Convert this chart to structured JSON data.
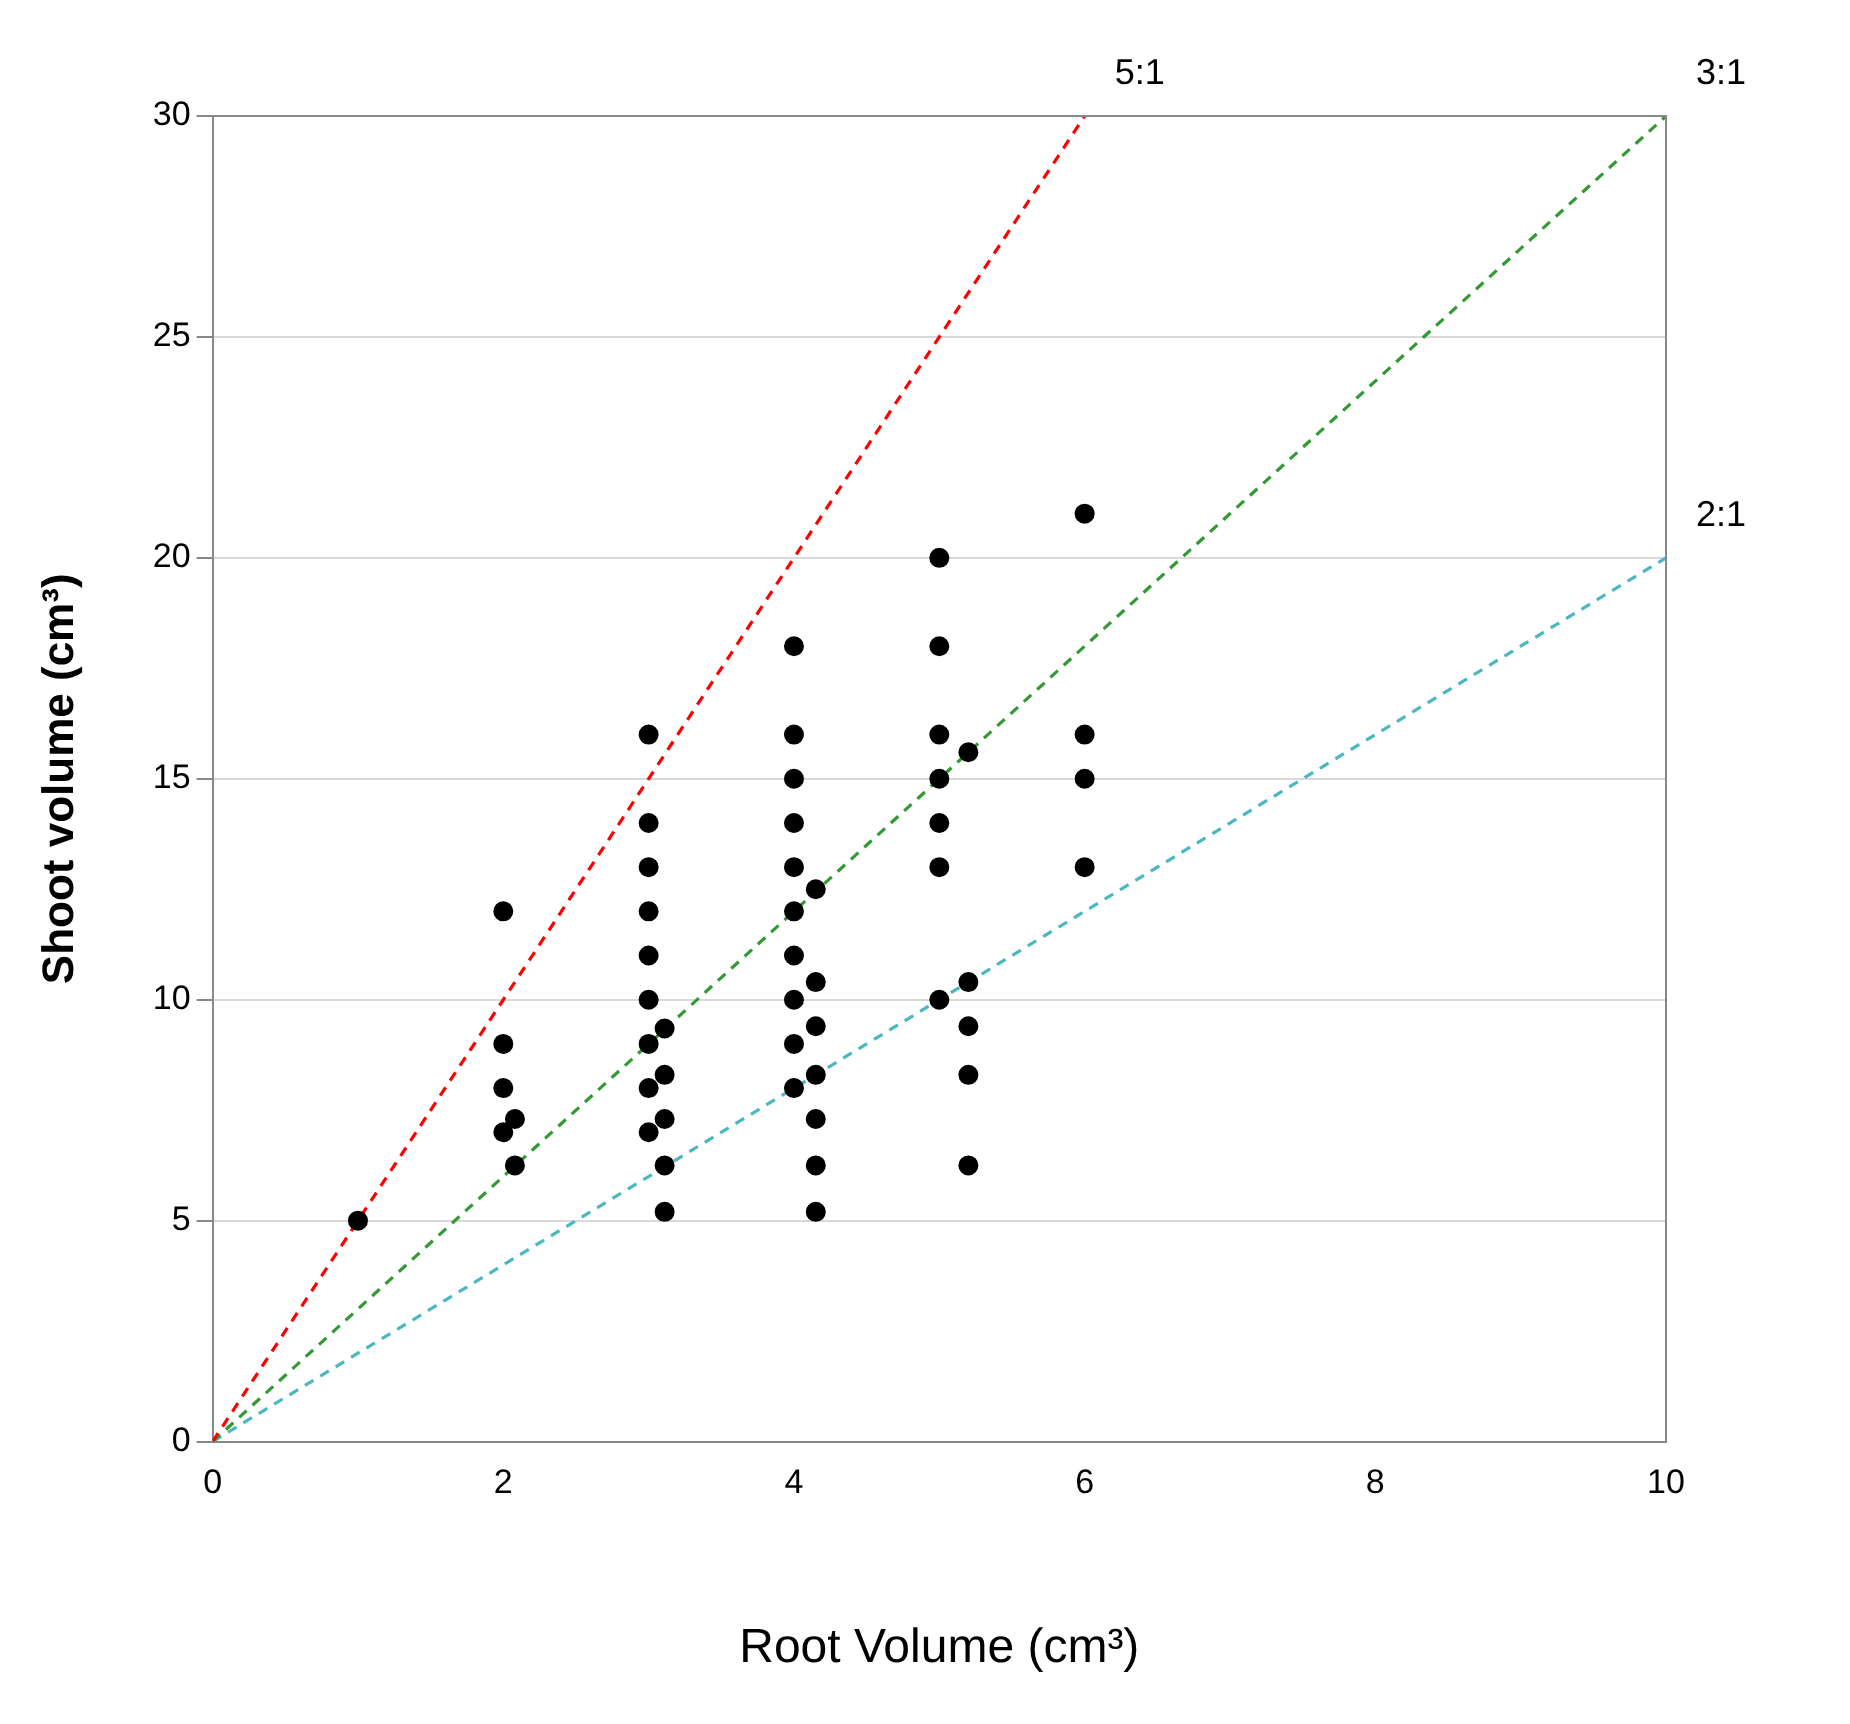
{
  "chart_data": {
    "type": "scatter",
    "xlabel": "Root Volume (cm³)",
    "ylabel": "Shoot volume (cm³)",
    "xlim": [
      0,
      10
    ],
    "xticks": [
      0,
      2,
      4,
      6,
      8,
      10
    ],
    "ylim": [
      0,
      30
    ],
    "yticks": [
      0,
      5,
      10,
      15,
      20,
      25,
      30
    ],
    "grid": "y",
    "legend": false,
    "series": [
      {
        "color": "#000000",
        "marker": "circle",
        "x": [
          1,
          2,
          2,
          2,
          2,
          2.08,
          2.08,
          3,
          3,
          3,
          3,
          3,
          3,
          3,
          3,
          3,
          3.11,
          3.11,
          3.11,
          3.11,
          3.11,
          4,
          4,
          4,
          4,
          4,
          4,
          4,
          4,
          4,
          4,
          4.15,
          4.15,
          4.15,
          4.15,
          4.15,
          4.15,
          4.15,
          5,
          5,
          5,
          5,
          5,
          5,
          5,
          5.2,
          5.2,
          5.2,
          5.2,
          5.2,
          6,
          6,
          6,
          6
        ],
        "values": [
          5,
          12,
          9,
          8,
          7,
          7.3,
          6.25,
          16,
          14,
          13,
          12,
          11,
          10,
          9,
          8,
          7,
          9.35,
          8.3,
          7.3,
          6.25,
          5.2,
          18,
          16,
          15,
          14,
          13,
          12,
          11,
          10,
          9,
          8,
          12.5,
          10.4,
          9.4,
          8.3,
          7.3,
          6.25,
          5.2,
          20,
          18,
          16,
          15,
          14,
          13,
          10,
          15.6,
          10.4,
          9.4,
          8.3,
          6.25,
          21,
          16,
          15,
          13
        ]
      },
      {
        "type": "line",
        "name": "5:1",
        "color": "#ff0000",
        "marker": "none",
        "line_style": "dashed",
        "x": [
          0,
          6
        ],
        "values": [
          0,
          30
        ]
      },
      {
        "type": "line",
        "name": "3:1",
        "color": "#339933",
        "marker": "none",
        "line_style": "dashed",
        "x": [
          0,
          10
        ],
        "values": [
          0,
          30
        ]
      },
      {
        "type": "line",
        "name": "2:1",
        "color": "#4bb8c0",
        "marker": "none",
        "line_style": "dashed",
        "x": [
          0,
          10
        ],
        "values": [
          0,
          20
        ]
      }
    ]
  }
}
